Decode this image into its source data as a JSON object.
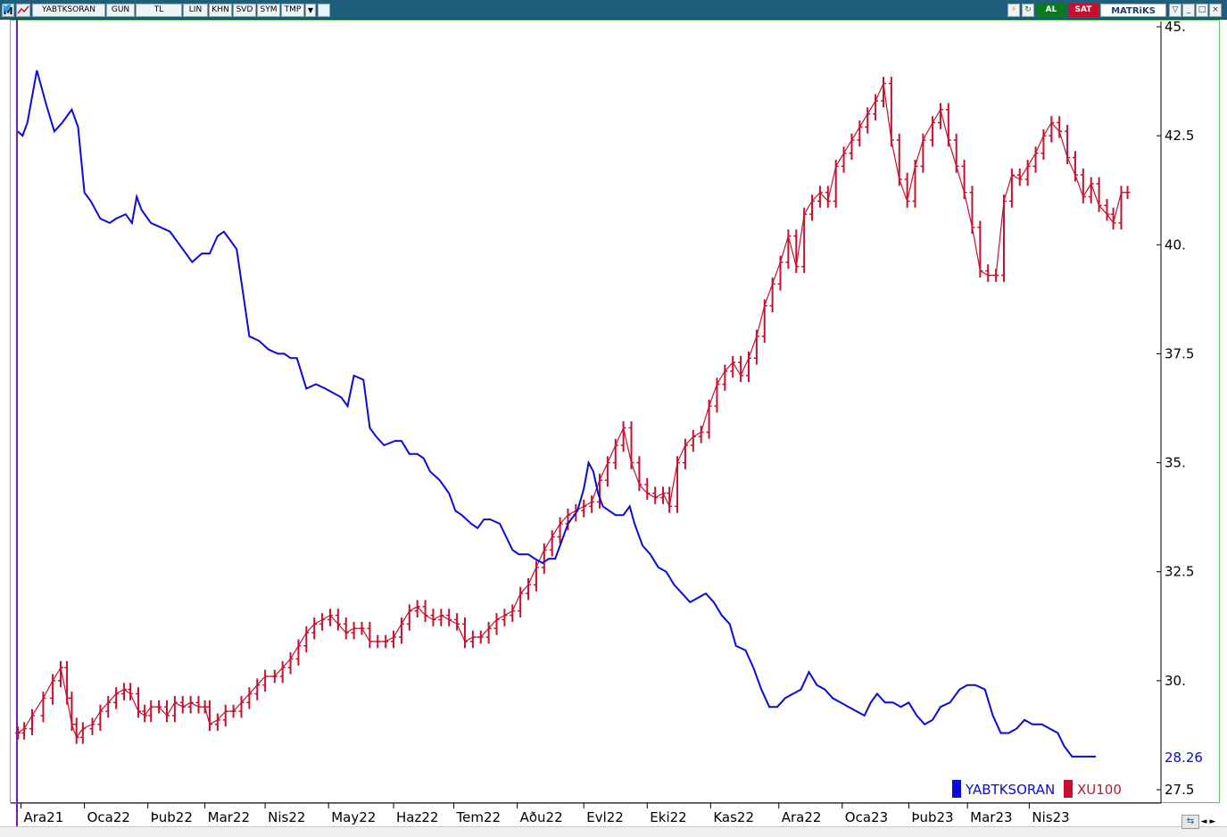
{
  "toolbar": {
    "menu_label": "M",
    "symbol": "YABTKSORAN",
    "period": "GUN",
    "currency": "TL",
    "buttons": [
      "LIN",
      "KHN",
      "SVD",
      "SYM",
      "TMP"
    ],
    "dropdown_glyph": "▼",
    "buy_label": "AL",
    "sell_label": "SAT",
    "brand": "MATRiKS",
    "window_controls": [
      "▽",
      "_",
      "□",
      "×"
    ],
    "icons": [
      "lightning-icon",
      "refresh-icon",
      "twitter-icon"
    ]
  },
  "navigation": {
    "left_arrow": "◄",
    "right_arrow": "►"
  },
  "colors": {
    "blue_series": "#0a0adc",
    "red_series": "#c8102e",
    "frame": "#5ec45e",
    "toolbar": "#1f5f7d"
  },
  "chart_data": {
    "type": "line",
    "y_ticks": [
      "45.",
      "42.5",
      "40.",
      "37.5",
      "35.",
      "32.5",
      "30.",
      "27.5"
    ],
    "y_tick_values": [
      45,
      42.5,
      40,
      37.5,
      35,
      32.5,
      30,
      27.5
    ],
    "ylim": [
      27.5,
      45
    ],
    "x_ticks": [
      "Ara21",
      "Oca22",
      "Þub22",
      "Mar22",
      "Nis22",
      "May22",
      "Haz22",
      "Tem22",
      "Aðu22",
      "Evl22",
      "Eki22",
      "Kas22",
      "Ara22",
      "Oca23",
      "Þub23",
      "Mar23",
      "Nis23"
    ],
    "last_value_label": "28.26",
    "legend_position": "bottom-right",
    "series": [
      {
        "name": "YABTKSORAN",
        "color": "#0a0adc",
        "style": "line",
        "points": [
          [
            0,
            42.6
          ],
          [
            0.15,
            42.5
          ],
          [
            0.3,
            42.8
          ],
          [
            0.6,
            44.0
          ],
          [
            0.9,
            43.2
          ],
          [
            1.15,
            42.6
          ],
          [
            1.4,
            42.8
          ],
          [
            1.7,
            43.1
          ],
          [
            1.9,
            42.7
          ],
          [
            2.1,
            41.2
          ],
          [
            2.3,
            41.0
          ],
          [
            2.6,
            40.6
          ],
          [
            2.9,
            40.5
          ],
          [
            3.1,
            40.6
          ],
          [
            3.4,
            40.7
          ],
          [
            3.6,
            40.5
          ],
          [
            3.75,
            41.1
          ],
          [
            3.9,
            40.8
          ],
          [
            4.2,
            40.5
          ],
          [
            4.5,
            40.4
          ],
          [
            4.8,
            40.3
          ],
          [
            5.2,
            39.9
          ],
          [
            5.5,
            39.6
          ],
          [
            5.8,
            39.8
          ],
          [
            6.05,
            39.8
          ],
          [
            6.3,
            40.2
          ],
          [
            6.5,
            40.3
          ],
          [
            6.7,
            40.1
          ],
          [
            6.9,
            39.9
          ],
          [
            7.1,
            38.9
          ],
          [
            7.3,
            37.9
          ],
          [
            7.6,
            37.8
          ],
          [
            7.9,
            37.6
          ],
          [
            8.2,
            37.5
          ],
          [
            8.4,
            37.5
          ],
          [
            8.6,
            37.4
          ],
          [
            8.8,
            37.4
          ],
          [
            9.1,
            36.7
          ],
          [
            9.4,
            36.8
          ],
          [
            9.7,
            36.7
          ],
          [
            9.95,
            36.6
          ],
          [
            10.2,
            36.5
          ],
          [
            10.4,
            36.3
          ],
          [
            10.6,
            37.0
          ],
          [
            10.9,
            36.9
          ],
          [
            11.1,
            35.8
          ],
          [
            11.3,
            35.6
          ],
          [
            11.55,
            35.4
          ],
          [
            11.9,
            35.5
          ],
          [
            12.1,
            35.5
          ],
          [
            12.35,
            35.2
          ],
          [
            12.6,
            35.2
          ],
          [
            12.8,
            35.1
          ],
          [
            13.0,
            34.8
          ],
          [
            13.3,
            34.6
          ],
          [
            13.6,
            34.3
          ],
          [
            13.8,
            33.9
          ],
          [
            14.0,
            33.8
          ],
          [
            14.3,
            33.6
          ],
          [
            14.5,
            33.5
          ],
          [
            14.7,
            33.7
          ],
          [
            14.9,
            33.7
          ],
          [
            15.2,
            33.6
          ],
          [
            15.4,
            33.3
          ],
          [
            15.6,
            33.0
          ],
          [
            15.8,
            32.9
          ],
          [
            16.1,
            32.9
          ],
          [
            16.3,
            32.8
          ],
          [
            16.55,
            32.7
          ],
          [
            16.75,
            32.8
          ],
          [
            16.95,
            32.8
          ],
          [
            17.15,
            33.2
          ],
          [
            17.35,
            33.6
          ],
          [
            17.65,
            33.9
          ],
          [
            17.85,
            34.4
          ],
          [
            18.0,
            35.0
          ],
          [
            18.15,
            34.8
          ],
          [
            18.3,
            34.3
          ],
          [
            18.45,
            34.0
          ],
          [
            18.65,
            33.9
          ],
          [
            18.85,
            33.8
          ],
          [
            19.1,
            33.8
          ],
          [
            19.3,
            34.0
          ],
          [
            19.45,
            33.6
          ],
          [
            19.7,
            33.1
          ],
          [
            19.95,
            32.9
          ],
          [
            20.2,
            32.6
          ],
          [
            20.45,
            32.5
          ],
          [
            20.7,
            32.2
          ],
          [
            20.95,
            32.0
          ],
          [
            21.2,
            31.8
          ],
          [
            21.45,
            31.9
          ],
          [
            21.7,
            32.0
          ],
          [
            21.95,
            31.8
          ],
          [
            22.2,
            31.5
          ],
          [
            22.45,
            31.3
          ],
          [
            22.65,
            30.8
          ],
          [
            22.95,
            30.7
          ],
          [
            23.2,
            30.3
          ],
          [
            23.45,
            29.8
          ],
          [
            23.7,
            29.4
          ],
          [
            23.95,
            29.4
          ],
          [
            24.2,
            29.6
          ],
          [
            24.45,
            29.7
          ],
          [
            24.7,
            29.8
          ],
          [
            24.95,
            30.2
          ],
          [
            25.2,
            29.9
          ],
          [
            25.45,
            29.8
          ],
          [
            25.7,
            29.6
          ],
          [
            25.95,
            29.5
          ],
          [
            26.2,
            29.4
          ],
          [
            26.45,
            29.3
          ],
          [
            26.7,
            29.2
          ],
          [
            26.9,
            29.5
          ],
          [
            27.1,
            29.7
          ],
          [
            27.35,
            29.5
          ],
          [
            27.6,
            29.5
          ],
          [
            27.85,
            29.4
          ],
          [
            28.1,
            29.5
          ],
          [
            28.35,
            29.2
          ],
          [
            28.6,
            29.0
          ],
          [
            28.85,
            29.1
          ],
          [
            29.1,
            29.4
          ],
          [
            29.4,
            29.5
          ],
          [
            29.7,
            29.8
          ],
          [
            29.95,
            29.9
          ],
          [
            30.2,
            29.9
          ],
          [
            30.5,
            29.8
          ],
          [
            30.75,
            29.2
          ],
          [
            31.0,
            28.8
          ],
          [
            31.25,
            28.8
          ],
          [
            31.5,
            28.9
          ],
          [
            31.75,
            29.1
          ],
          [
            32.0,
            29.0
          ],
          [
            32.3,
            29.0
          ],
          [
            32.55,
            28.9
          ],
          [
            32.8,
            28.8
          ],
          [
            33.0,
            28.5
          ],
          [
            33.25,
            28.26
          ],
          [
            34.0,
            28.26
          ]
        ]
      },
      {
        "name": "XU100",
        "color": "#c8102e",
        "style": "bars",
        "points": [
          [
            0,
            28.8
          ],
          [
            0.2,
            28.9
          ],
          [
            0.45,
            29.2
          ],
          [
            0.8,
            29.6
          ],
          [
            1.1,
            30.0
          ],
          [
            1.35,
            30.3
          ],
          [
            1.55,
            29.6
          ],
          [
            1.7,
            29.0
          ],
          [
            1.85,
            28.7
          ],
          [
            2.05,
            28.9
          ],
          [
            2.35,
            29.0
          ],
          [
            2.6,
            29.3
          ],
          [
            2.85,
            29.5
          ],
          [
            3.1,
            29.7
          ],
          [
            3.35,
            29.8
          ],
          [
            3.55,
            29.7
          ],
          [
            3.8,
            29.3
          ],
          [
            4.0,
            29.2
          ],
          [
            4.2,
            29.4
          ],
          [
            4.45,
            29.4
          ],
          [
            4.7,
            29.2
          ],
          [
            4.95,
            29.5
          ],
          [
            5.2,
            29.4
          ],
          [
            5.45,
            29.5
          ],
          [
            5.7,
            29.4
          ],
          [
            5.9,
            29.4
          ],
          [
            6.05,
            29.0
          ],
          [
            6.3,
            29.1
          ],
          [
            6.55,
            29.3
          ],
          [
            6.8,
            29.3
          ],
          [
            7.05,
            29.5
          ],
          [
            7.3,
            29.7
          ],
          [
            7.55,
            29.9
          ],
          [
            7.8,
            30.1
          ],
          [
            8.1,
            30.1
          ],
          [
            8.35,
            30.3
          ],
          [
            8.6,
            30.5
          ],
          [
            8.85,
            30.8
          ],
          [
            9.1,
            31.1
          ],
          [
            9.35,
            31.3
          ],
          [
            9.6,
            31.4
          ],
          [
            9.85,
            31.5
          ],
          [
            10.1,
            31.3
          ],
          [
            10.35,
            31.1
          ],
          [
            10.6,
            31.2
          ],
          [
            10.85,
            31.2
          ],
          [
            11.1,
            30.9
          ],
          [
            11.35,
            30.9
          ],
          [
            11.6,
            30.9
          ],
          [
            11.85,
            31.0
          ],
          [
            12.1,
            31.3
          ],
          [
            12.35,
            31.6
          ],
          [
            12.6,
            31.7
          ],
          [
            12.85,
            31.5
          ],
          [
            13.1,
            31.4
          ],
          [
            13.35,
            31.5
          ],
          [
            13.6,
            31.4
          ],
          [
            13.85,
            31.3
          ],
          [
            14.1,
            30.9
          ],
          [
            14.35,
            31.0
          ],
          [
            14.6,
            31.0
          ],
          [
            14.85,
            31.2
          ],
          [
            15.1,
            31.4
          ],
          [
            15.35,
            31.5
          ],
          [
            15.6,
            31.6
          ],
          [
            15.85,
            32.0
          ],
          [
            16.1,
            32.2
          ],
          [
            16.35,
            32.6
          ],
          [
            16.6,
            33.0
          ],
          [
            16.85,
            33.3
          ],
          [
            17.1,
            33.6
          ],
          [
            17.35,
            33.8
          ],
          [
            17.6,
            33.9
          ],
          [
            17.85,
            34.0
          ],
          [
            18.1,
            34.1
          ],
          [
            18.35,
            34.6
          ],
          [
            18.6,
            35.0
          ],
          [
            18.85,
            35.4
          ],
          [
            19.1,
            35.8
          ],
          [
            19.35,
            35.0
          ],
          [
            19.6,
            34.5
          ],
          [
            19.85,
            34.3
          ],
          [
            20.1,
            34.2
          ],
          [
            20.35,
            34.3
          ],
          [
            20.55,
            34.0
          ],
          [
            20.8,
            35.0
          ],
          [
            21.05,
            35.4
          ],
          [
            21.3,
            35.6
          ],
          [
            21.55,
            35.7
          ],
          [
            21.8,
            36.3
          ],
          [
            22.05,
            36.8
          ],
          [
            22.3,
            37.1
          ],
          [
            22.55,
            37.3
          ],
          [
            22.8,
            37.0
          ],
          [
            23.05,
            37.4
          ],
          [
            23.3,
            37.9
          ],
          [
            23.55,
            38.6
          ],
          [
            23.8,
            39.1
          ],
          [
            24.05,
            39.6
          ],
          [
            24.3,
            40.2
          ],
          [
            24.55,
            39.5
          ],
          [
            24.8,
            40.7
          ],
          [
            25.05,
            41.0
          ],
          [
            25.3,
            41.2
          ],
          [
            25.55,
            41.0
          ],
          [
            25.8,
            41.8
          ],
          [
            26.05,
            42.1
          ],
          [
            26.3,
            42.4
          ],
          [
            26.55,
            42.7
          ],
          [
            26.8,
            43.0
          ],
          [
            27.05,
            43.3
          ],
          [
            27.3,
            43.7
          ],
          [
            27.55,
            42.4
          ],
          [
            27.8,
            41.5
          ],
          [
            28.05,
            41.0
          ],
          [
            28.3,
            41.8
          ],
          [
            28.55,
            42.4
          ],
          [
            28.85,
            42.8
          ],
          [
            29.1,
            43.1
          ],
          [
            29.35,
            42.4
          ],
          [
            29.6,
            41.8
          ],
          [
            29.85,
            41.2
          ],
          [
            30.1,
            40.4
          ],
          [
            30.35,
            39.4
          ],
          [
            30.6,
            39.3
          ],
          [
            30.85,
            39.3
          ],
          [
            31.1,
            41.0
          ],
          [
            31.35,
            41.6
          ],
          [
            31.6,
            41.5
          ],
          [
            31.85,
            41.8
          ],
          [
            32.1,
            42.1
          ],
          [
            32.35,
            42.5
          ],
          [
            32.6,
            42.8
          ],
          [
            32.85,
            42.6
          ],
          [
            33.1,
            42.0
          ],
          [
            33.35,
            41.6
          ],
          [
            33.6,
            41.1
          ],
          [
            33.85,
            41.4
          ],
          [
            34.1,
            40.9
          ],
          [
            34.35,
            40.7
          ],
          [
            34.55,
            40.5
          ],
          [
            34.8,
            41.2
          ],
          [
            35.0,
            41.2
          ]
        ]
      }
    ],
    "x_tick_positions": [
      0.1,
      2.1,
      4.1,
      5.9,
      7.8,
      9.8,
      11.85,
      13.75,
      15.75,
      17.85,
      19.85,
      21.85,
      24.0,
      26.0,
      28.1,
      29.95,
      31.9
    ]
  }
}
